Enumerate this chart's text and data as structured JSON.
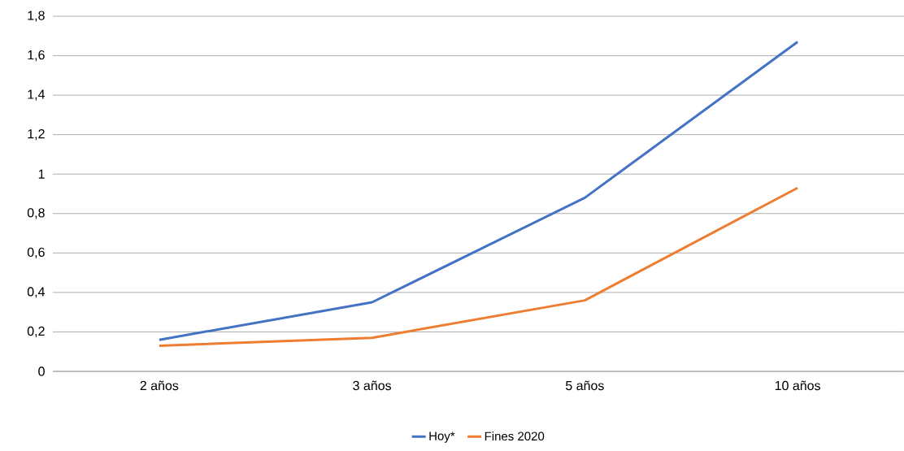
{
  "chart_data": {
    "type": "line",
    "categories": [
      "2 años",
      "3 años",
      "5 años",
      "10 años"
    ],
    "series": [
      {
        "name": "Hoy*",
        "color": "#4472c4",
        "values": [
          0.16,
          0.35,
          0.88,
          1.67
        ]
      },
      {
        "name": "Fines 2020",
        "color": "#ed7d31",
        "values": [
          0.13,
          0.17,
          0.36,
          0.93
        ]
      }
    ],
    "ylim": [
      0,
      1.8
    ],
    "yticks": [
      0,
      {
        "value": 0.2,
        "label": "0,2"
      },
      {
        "value": 0.4,
        "label": "0,4"
      },
      {
        "value": 0.6,
        "label": "0,6"
      },
      {
        "value": 0.8,
        "label": "0,8"
      },
      1,
      {
        "value": 1.2,
        "label": "1,2"
      },
      {
        "value": 1.4,
        "label": "1,4"
      },
      {
        "value": 1.6,
        "label": "1,6"
      },
      {
        "value": 1.8,
        "label": "1,8"
      }
    ],
    "grid": "y",
    "legend": "bottom",
    "marker": "none",
    "line_style": "solid"
  }
}
